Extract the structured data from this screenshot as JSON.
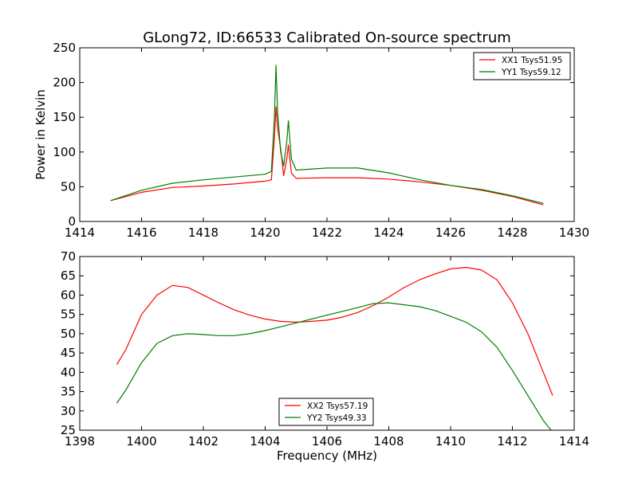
{
  "title": "GLong72, ID:66533 Calibrated On-source spectrum",
  "chart_data": [
    {
      "type": "line",
      "xlabel": "",
      "ylabel": "Power in Kelvin",
      "xlim": [
        1414,
        1430
      ],
      "ylim": [
        0,
        250
      ],
      "xticks": [
        1414,
        1416,
        1418,
        1420,
        1422,
        1424,
        1426,
        1428,
        1430
      ],
      "yticks": [
        0,
        50,
        100,
        150,
        200,
        250
      ],
      "legend": "top-right",
      "series": [
        {
          "name": "XX1 Tsys51.95",
          "color": "#ff0000",
          "points": [
            [
              1415.0,
              30
            ],
            [
              1416.0,
              42
            ],
            [
              1417.0,
              49
            ],
            [
              1418.0,
              51
            ],
            [
              1419.0,
              54
            ],
            [
              1420.0,
              58
            ],
            [
              1420.2,
              60
            ],
            [
              1420.3,
              120
            ],
            [
              1420.35,
              165
            ],
            [
              1420.4,
              135
            ],
            [
              1420.5,
              105
            ],
            [
              1420.6,
              66
            ],
            [
              1420.7,
              90
            ],
            [
              1420.75,
              110
            ],
            [
              1420.85,
              70
            ],
            [
              1421.0,
              62
            ],
            [
              1422.0,
              63
            ],
            [
              1423.0,
              63
            ],
            [
              1424.0,
              61
            ],
            [
              1425.0,
              57
            ],
            [
              1426.0,
              52
            ],
            [
              1427.0,
              45
            ],
            [
              1428.0,
              36
            ],
            [
              1429.0,
              24
            ]
          ]
        },
        {
          "name": "YY1 Tsys59.12",
          "color": "#007f00",
          "points": [
            [
              1415.0,
              30
            ],
            [
              1416.0,
              45
            ],
            [
              1417.0,
              55
            ],
            [
              1418.0,
              60
            ],
            [
              1419.0,
              64
            ],
            [
              1420.0,
              68
            ],
            [
              1420.2,
              72
            ],
            [
              1420.3,
              150
            ],
            [
              1420.35,
              225
            ],
            [
              1420.4,
              160
            ],
            [
              1420.5,
              100
            ],
            [
              1420.6,
              80
            ],
            [
              1420.7,
              115
            ],
            [
              1420.75,
              145
            ],
            [
              1420.85,
              90
            ],
            [
              1421.0,
              74
            ],
            [
              1422.0,
              77
            ],
            [
              1423.0,
              77
            ],
            [
              1424.0,
              70
            ],
            [
              1425.0,
              60
            ],
            [
              1426.0,
              52
            ],
            [
              1427.0,
              46
            ],
            [
              1428.0,
              37
            ],
            [
              1429.0,
              26
            ]
          ]
        }
      ]
    },
    {
      "type": "line",
      "xlabel": "Frequency (MHz)",
      "ylabel": "",
      "xlim": [
        1398,
        1414
      ],
      "ylim": [
        25,
        70
      ],
      "xticks": [
        1398,
        1400,
        1402,
        1404,
        1406,
        1408,
        1410,
        1412,
        1414
      ],
      "yticks": [
        25,
        30,
        35,
        40,
        45,
        50,
        55,
        60,
        65,
        70
      ],
      "legend": "bottom-center",
      "series": [
        {
          "name": "XX2 Tsys57.19",
          "color": "#ff0000",
          "points": [
            [
              1399.2,
              42
            ],
            [
              1399.5,
              46
            ],
            [
              1400.0,
              55
            ],
            [
              1400.5,
              60
            ],
            [
              1401.0,
              62.5
            ],
            [
              1401.5,
              62
            ],
            [
              1402.0,
              60
            ],
            [
              1402.5,
              58
            ],
            [
              1403.0,
              56.2
            ],
            [
              1403.5,
              54.8
            ],
            [
              1404.0,
              53.8
            ],
            [
              1404.5,
              53.2
            ],
            [
              1405.0,
              53
            ],
            [
              1405.5,
              53.2
            ],
            [
              1406.0,
              53.5
            ],
            [
              1406.5,
              54.3
            ],
            [
              1407.0,
              55.5
            ],
            [
              1407.5,
              57.3
            ],
            [
              1408.0,
              59.5
            ],
            [
              1408.5,
              62
            ],
            [
              1409.0,
              64
            ],
            [
              1409.5,
              65.5
            ],
            [
              1410.0,
              66.8
            ],
            [
              1410.5,
              67.2
            ],
            [
              1411.0,
              66.5
            ],
            [
              1411.5,
              64
            ],
            [
              1412.0,
              58
            ],
            [
              1412.5,
              50
            ],
            [
              1413.0,
              40
            ],
            [
              1413.3,
              34
            ]
          ]
        },
        {
          "name": "YY2 Tsys49.33",
          "color": "#007f00",
          "points": [
            [
              1399.2,
              32
            ],
            [
              1399.5,
              35.5
            ],
            [
              1400.0,
              42.5
            ],
            [
              1400.5,
              47.5
            ],
            [
              1401.0,
              49.5
            ],
            [
              1401.5,
              50
            ],
            [
              1402.0,
              49.8
            ],
            [
              1402.5,
              49.5
            ],
            [
              1403.0,
              49.5
            ],
            [
              1403.5,
              50
            ],
            [
              1404.0,
              50.8
            ],
            [
              1404.5,
              51.8
            ],
            [
              1405.0,
              52.8
            ],
            [
              1405.5,
              53.8
            ],
            [
              1406.0,
              54.8
            ],
            [
              1406.5,
              55.8
            ],
            [
              1407.0,
              56.8
            ],
            [
              1407.5,
              57.8
            ],
            [
              1408.0,
              58
            ],
            [
              1408.5,
              57.5
            ],
            [
              1409.0,
              57
            ],
            [
              1409.5,
              56
            ],
            [
              1410.0,
              54.5
            ],
            [
              1410.5,
              53
            ],
            [
              1411.0,
              50.5
            ],
            [
              1411.5,
              46.5
            ],
            [
              1412.0,
              40.5
            ],
            [
              1412.5,
              34
            ],
            [
              1413.0,
              27.5
            ],
            [
              1413.3,
              24.5
            ]
          ]
        }
      ]
    }
  ]
}
